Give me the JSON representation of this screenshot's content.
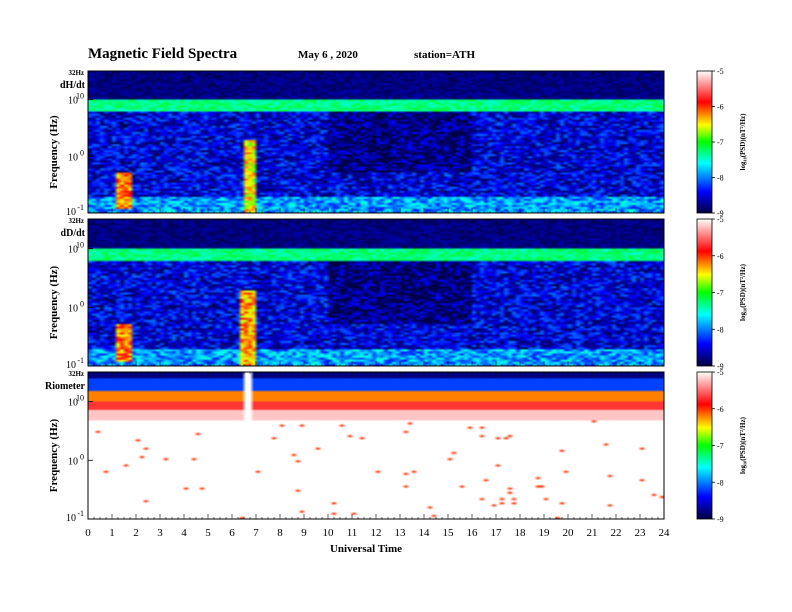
{
  "header": {
    "title": "Magnetic  Field  Spectra",
    "date": "May 6  , 2020",
    "station": "station=ATH"
  },
  "chart_data": {
    "type": "heatmap",
    "xlabel": "Universal Time",
    "x_ticks": [
      "0",
      "1",
      "2",
      "3",
      "4",
      "5",
      "6",
      "7",
      "8",
      "9",
      "10",
      "11",
      "12",
      "13",
      "14",
      "15",
      "16",
      "17",
      "18",
      "19",
      "20",
      "21",
      "22",
      "23",
      "24"
    ],
    "xlim": [
      0,
      24
    ],
    "ylabel": "Frequency  (Hz)",
    "y_scale": "log",
    "ylim": [
      0.1,
      32
    ],
    "y_tick_labels": [
      "32Hz",
      "10",
      "1",
      "0",
      "0",
      "-1"
    ],
    "colorbar": {
      "label": "log₁₀(PSD)(nT²/Hz)",
      "scale": "log",
      "ticks": [
        "-5",
        "-6",
        "-7",
        "-8",
        "-9"
      ],
      "range": [
        -9,
        -5
      ],
      "colormap": [
        "#000040",
        "#0000ff",
        "#00ffff",
        "#00ff00",
        "#ffff00",
        "#ff0000",
        "#ffffff"
      ]
    },
    "panels": [
      {
        "name": "dH/dt",
        "baseline_log_psd": -8.5,
        "hf_band_log_psd": -7.3,
        "features": [
          {
            "kind": "burst",
            "t_start": 1.25,
            "t_end": 1.75,
            "f_low": 0.12,
            "f_high": 0.5,
            "log_psd": -6.2
          },
          {
            "kind": "burst",
            "t_start": 6.45,
            "t_end": 6.95,
            "f_low": 0.1,
            "f_high": 2.0,
            "log_psd": -6.5
          }
        ]
      },
      {
        "name": "dD/dt",
        "baseline_log_psd": -8.5,
        "hf_band_log_psd": -7.3,
        "features": [
          {
            "kind": "burst",
            "t_start": 1.25,
            "t_end": 1.75,
            "f_low": 0.12,
            "f_high": 0.5,
            "log_psd": -6.2
          },
          {
            "kind": "burst",
            "t_start": 6.4,
            "t_end": 7.0,
            "f_low": 0.1,
            "f_high": 2.0,
            "log_psd": -6.3
          }
        ]
      },
      {
        "name": "Riometer",
        "baseline_log_psd": -5.0,
        "hf_band_log_psd": -7.0,
        "features": [
          {
            "kind": "gap",
            "t_start": 6.5,
            "t_end": 6.75
          }
        ]
      }
    ]
  }
}
